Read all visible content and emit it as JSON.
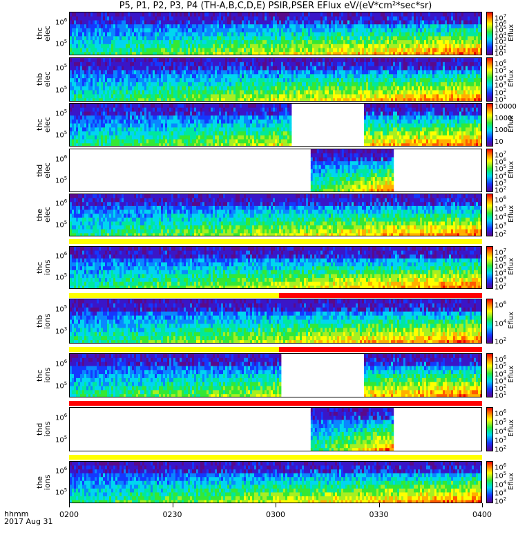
{
  "title": "P5, P1, P2, P3, P4 (TH-A,B,C,D,E) PSIR,PSER EFlux eV/(eV*cm²*sec*sr)",
  "x_header": [
    "hhmm",
    "2017 Aug 31"
  ],
  "colors": {
    "flag_yellow": "#ffff00",
    "flag_red": "#ff0000",
    "frame": "#000000"
  },
  "chart_data": {
    "type": "heatmap",
    "title": "P5, P1, P2, P3, P4 (TH-A,B,C,D,E) PSIR,PSER EFlux eV/(eV*cm²*sec*sr)",
    "x_tick_labels": [
      "0200",
      "0230",
      "0300",
      "0330",
      "0400"
    ],
    "x_range": [
      "02:00",
      "04:00"
    ],
    "colorscale": "rainbow (purple-blue-cyan-green-yellow-red)",
    "panels": [
      {
        "probe": "thc",
        "species": "elec",
        "ylabel": [
          "thc",
          "elec"
        ],
        "yticks": [
          "10^6",
          "10^5"
        ],
        "cbar_ticks": [
          "10^7",
          "10^6",
          "10^5",
          "10^4",
          "10^3",
          "10^2",
          "10^1"
        ],
        "cbar_label": "Eflux",
        "data_start": "02:00",
        "data_end": "04:00",
        "gap": null
      },
      {
        "probe": "thb",
        "species": "elec",
        "ylabel": [
          "thb",
          "elec"
        ],
        "yticks": [
          "10^5",
          "10^5"
        ],
        "cbar_ticks": [
          "10^6",
          "10^5",
          "10^4",
          "10^3",
          "10^2",
          "10^1"
        ],
        "cbar_label": "Eflux",
        "data_start": "02:00",
        "data_end": "04:00",
        "gap": null
      },
      {
        "probe": "thc",
        "species": "elec",
        "ylabel": [
          "thc",
          "elec"
        ],
        "yticks": [
          "10^5",
          "10^5"
        ],
        "cbar_ticks": [
          "10000",
          "1000",
          "100",
          "10"
        ],
        "cbar_label": "Eflux",
        "data_start": "02:00",
        "data_end": "04:00",
        "gap": [
          "03:04",
          "03:25"
        ]
      },
      {
        "probe": "thd",
        "species": "elec",
        "ylabel": [
          "thd",
          "elec"
        ],
        "yticks": [
          "10^6",
          "10^5"
        ],
        "cbar_ticks": [
          "10^7",
          "10^6",
          "10^5",
          "10^4",
          "10^3",
          "10^2"
        ],
        "cbar_label": "Eflux",
        "data_start": "03:10",
        "data_end": "03:34",
        "gap": null
      },
      {
        "probe": "the",
        "species": "elec",
        "ylabel": [
          "the",
          "elec"
        ],
        "yticks": [
          "10^6",
          "10^5"
        ],
        "cbar_ticks": [
          "10^6",
          "10^5",
          "10^4",
          "10^3",
          "10^2"
        ],
        "cbar_label": "Eflux",
        "data_start": "02:00",
        "data_end": "04:00",
        "gap": null
      },
      {
        "probe": "thc",
        "species": "ions",
        "ylabel": [
          "thc",
          "ions"
        ],
        "yticks": [
          "10^6",
          "10^5"
        ],
        "cbar_ticks": [
          "10^7",
          "10^6",
          "10^5",
          "10^4",
          "10^3",
          "10^2"
        ],
        "cbar_label": "Eflux",
        "data_start": "02:00",
        "data_end": "04:00",
        "gap": null
      },
      {
        "probe": "thb",
        "species": "ions",
        "ylabel": [
          "thb",
          "ions"
        ],
        "yticks": [
          "10^5",
          "10^3"
        ],
        "cbar_ticks": [
          "10^6",
          "10^4",
          "10^2"
        ],
        "cbar_label": "Eflux",
        "data_start": "02:00",
        "data_end": "04:00",
        "gap": null
      },
      {
        "probe": "thc",
        "species": "ions",
        "ylabel": [
          "thc",
          "ions"
        ],
        "yticks": [
          "10^6",
          "10^5"
        ],
        "cbar_ticks": [
          "10^6",
          "10^5",
          "10^4",
          "10^3",
          "10^2",
          "10^1"
        ],
        "cbar_label": "Eflux",
        "data_start": "02:00",
        "data_end": "04:00",
        "gap": [
          "03:01",
          "03:25"
        ]
      },
      {
        "probe": "thd",
        "species": "ions",
        "ylabel": [
          "thd",
          "ions"
        ],
        "yticks": [
          "10^6",
          "10^5"
        ],
        "cbar_ticks": [
          "10^6",
          "10^5",
          "10^4",
          "10^3",
          "10^2"
        ],
        "cbar_label": "Eflux",
        "data_start": "03:10",
        "data_end": "03:34",
        "gap": null
      },
      {
        "probe": "the",
        "species": "ions",
        "ylabel": [
          "the",
          "ions"
        ],
        "yticks": [
          "10^6",
          "10^5"
        ],
        "cbar_ticks": [
          "10^6",
          "10^5",
          "10^4",
          "10^3",
          "10^2"
        ],
        "cbar_label": "Eflux",
        "data_start": "02:00",
        "data_end": "04:00",
        "gap": null
      }
    ],
    "flag_bars": [
      {
        "segments": [
          {
            "start": "02:00",
            "end": "04:00",
            "color": "#ffff00"
          }
        ]
      },
      {
        "segments": [
          {
            "start": "02:00",
            "end": "03:01",
            "color": "#ffff00"
          },
          {
            "start": "03:01",
            "end": "04:00",
            "color": "#ff0000"
          }
        ]
      },
      {
        "segments": [
          {
            "start": "02:00",
            "end": "03:01",
            "color": "#ffff00"
          },
          {
            "start": "03:01",
            "end": "04:00",
            "color": "#ff0000"
          }
        ]
      },
      {
        "segments": [
          {
            "start": "02:00",
            "end": "04:00",
            "color": "#ff0000"
          }
        ]
      },
      {
        "segments": [
          {
            "start": "02:00",
            "end": "04:00",
            "color": "#ffff00"
          }
        ]
      }
    ]
  }
}
